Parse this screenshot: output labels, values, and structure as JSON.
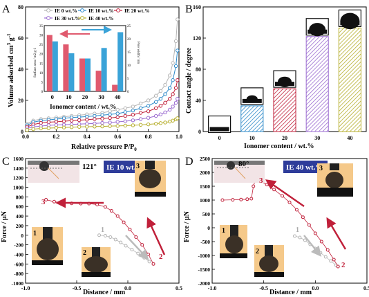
{
  "colors": {
    "gray": "#b4b4b4",
    "blue": "#2b88c8",
    "red": "#c0203a",
    "purple": "#9a6bd0",
    "olive": "#b6ae2c",
    "pink": "#e05a6e",
    "cyan": "#3aa3d8",
    "dark": "#111111"
  },
  "chart_data": [
    {
      "panel": "A",
      "type": "line",
      "xlabel": "Relative pressure P/P",
      "xlabel_sub": "0",
      "ylabel": "Volume adsorbed cm",
      "ylabel_unit_sup": "3",
      "ylabel_unit2": " g",
      "ylabel_unit2_sup": "-1",
      "xlim": [
        0.0,
        1.0
      ],
      "ylim": [
        0,
        80
      ],
      "x_ticks": [
        "0.0",
        "0.2",
        "0.4",
        "0.6",
        "0.8",
        "1.0"
      ],
      "y_ticks": [
        "0",
        "20",
        "40",
        "60",
        "80"
      ],
      "legend": [
        "IE  0 wt.%",
        "IE 10 wt.%",
        "IE 20 wt.%",
        "IE 30 wt.%",
        "IE 40 wt.%"
      ],
      "series": [
        {
          "name": "IE  0 wt.%",
          "color_key": "gray",
          "x": [
            0.01,
            0.05,
            0.1,
            0.15,
            0.2,
            0.25,
            0.3,
            0.35,
            0.4,
            0.45,
            0.5,
            0.55,
            0.6,
            0.65,
            0.7,
            0.75,
            0.8,
            0.85,
            0.88,
            0.91,
            0.94,
            0.96,
            0.98,
            0.99
          ],
          "y": [
            5,
            7,
            8,
            8.5,
            9,
            9.5,
            10,
            10.5,
            11,
            11.5,
            12,
            13,
            14,
            15,
            16,
            18,
            20,
            23,
            26,
            30,
            36,
            44,
            58,
            72
          ]
        },
        {
          "name": "IE 10 wt.%",
          "color_key": "blue",
          "x": [
            0.01,
            0.05,
            0.1,
            0.15,
            0.2,
            0.25,
            0.3,
            0.35,
            0.4,
            0.45,
            0.5,
            0.55,
            0.6,
            0.65,
            0.7,
            0.75,
            0.8,
            0.85,
            0.88,
            0.91,
            0.94,
            0.96,
            0.98,
            0.99
          ],
          "y": [
            4,
            6,
            7,
            7.5,
            8,
            8.5,
            9,
            9.3,
            9.6,
            10,
            10.5,
            11,
            11.5,
            12.5,
            13.5,
            15,
            16.5,
            19,
            21,
            24,
            28,
            33,
            42,
            52
          ]
        },
        {
          "name": "IE 20 wt.%",
          "color_key": "red",
          "x": [
            0.01,
            0.05,
            0.1,
            0.15,
            0.2,
            0.25,
            0.3,
            0.35,
            0.4,
            0.45,
            0.5,
            0.55,
            0.6,
            0.65,
            0.7,
            0.75,
            0.8,
            0.85,
            0.88,
            0.91,
            0.94,
            0.96,
            0.98,
            0.99
          ],
          "y": [
            3,
            4.5,
            5.5,
            6,
            6.3,
            6.6,
            7,
            7.3,
            7.6,
            8,
            8.3,
            8.7,
            9.2,
            10,
            10.8,
            12,
            13,
            15,
            16.5,
            18.5,
            21,
            24,
            28,
            33
          ]
        },
        {
          "name": "IE 30 wt.%",
          "color_key": "purple",
          "x": [
            0.01,
            0.05,
            0.1,
            0.15,
            0.2,
            0.25,
            0.3,
            0.35,
            0.4,
            0.45,
            0.5,
            0.55,
            0.6,
            0.65,
            0.7,
            0.75,
            0.8,
            0.85,
            0.88,
            0.91,
            0.94,
            0.96,
            0.98,
            0.99
          ],
          "y": [
            2,
            3,
            3.5,
            4,
            4.2,
            4.4,
            4.6,
            4.8,
            5,
            5.2,
            5.5,
            5.8,
            6.2,
            6.6,
            7.2,
            8,
            8.8,
            10,
            11,
            12.3,
            14,
            16,
            18.5,
            21
          ]
        },
        {
          "name": "IE 40 wt.%",
          "color_key": "olive",
          "x": [
            0.01,
            0.05,
            0.1,
            0.15,
            0.2,
            0.25,
            0.3,
            0.35,
            0.4,
            0.45,
            0.5,
            0.55,
            0.6,
            0.65,
            0.7,
            0.75,
            0.8,
            0.85,
            0.88,
            0.91,
            0.94,
            0.96,
            0.98,
            0.99
          ],
          "y": [
            1,
            1.5,
            2,
            2.2,
            2.4,
            2.6,
            2.8,
            3,
            3.1,
            3.2,
            3.3,
            3.5,
            3.6,
            3.8,
            4,
            4.3,
            4.6,
            5,
            5.4,
            5.8,
            6.4,
            7,
            7.8,
            8.5
          ]
        }
      ]
    },
    {
      "panel": "A-inset",
      "type": "bar",
      "xlabel": "Ionomer content / wt.%",
      "ylabel_left": "Surface area / m2 g-1",
      "ylabel_right": "Pore width / nm",
      "categories": [
        "0",
        "10",
        "20",
        "30",
        "40"
      ],
      "ylim_left": [
        0,
        35
      ],
      "ylim_right": [
        0,
        25
      ],
      "y_ticks_left": [
        "0",
        "5",
        "10",
        "15",
        "20",
        "25",
        "30",
        "35"
      ],
      "y_ticks_right": [
        "0",
        "5",
        "10",
        "15",
        "20",
        "25"
      ],
      "series": [
        {
          "axis": "left",
          "color_key": "pink",
          "values": [
            30,
            25,
            17.5,
            11,
            3.5
          ]
        },
        {
          "axis": "right",
          "color_key": "cyan",
          "values": [
            19,
            14.5,
            12.5,
            16.5,
            22.5
          ]
        }
      ]
    },
    {
      "panel": "B",
      "type": "bar",
      "xlabel": "Ionomer content / wt.%",
      "ylabel": "Contact angle / degree",
      "categories": [
        "0",
        "10",
        "20",
        "30",
        "40"
      ],
      "values": [
        0,
        33,
        55,
        122,
        133
      ],
      "ylim": [
        0,
        160
      ],
      "y_ticks": [
        "0",
        "40",
        "80",
        "120",
        "160"
      ],
      "series_colors": [
        "dark",
        "blue",
        "red",
        "purple",
        "olive"
      ]
    },
    {
      "panel": "C",
      "type": "scatter",
      "title_badge": "IE 10 wt.%",
      "angle_label": "121°",
      "xlabel": "Distance / mm",
      "ylabel": "Force / μN",
      "xlim": [
        -1.0,
        0.5
      ],
      "ylim": [
        -1000,
        1600
      ],
      "x_ticks": [
        "-1.0",
        "-0.5",
        "0.0",
        "0.5"
      ],
      "y_ticks": [
        "-1000",
        "-800",
        "-600",
        "-400",
        "-200",
        "0",
        "200",
        "400",
        "600",
        "800",
        "1000",
        "1200",
        "1400",
        "1600"
      ],
      "step_labels": [
        "1",
        "2",
        "3"
      ],
      "photo_labels": [
        "1",
        "2",
        "3"
      ],
      "series": [
        {
          "name": "approach",
          "color_key": "gray",
          "x": [
            -0.28,
            -0.22,
            -0.17,
            -0.12,
            -0.07,
            -0.02,
            0.04,
            0.1,
            0.16,
            0.21
          ],
          "y": [
            0,
            -10,
            -40,
            -90,
            -150,
            -220,
            -300,
            -380,
            -470,
            -550
          ]
        },
        {
          "name": "retract",
          "color_key": "red",
          "x": [
            0.25,
            0.2,
            0.14,
            0.08,
            0.02,
            -0.04,
            -0.1,
            -0.16,
            -0.22,
            -0.3,
            -0.38,
            -0.46,
            -0.55,
            -0.64,
            -0.72,
            -0.8
          ],
          "y": [
            -600,
            -400,
            -200,
            -40,
            120,
            270,
            400,
            510,
            590,
            640,
            660,
            660,
            665,
            675,
            700,
            740
          ]
        }
      ]
    },
    {
      "panel": "D",
      "type": "scatter",
      "title_badge": "IE 40 wt.%",
      "angle_label": "80°",
      "xlabel": "Distance / mm",
      "ylabel": "Force / μN",
      "xlim": [
        -1.0,
        0.5
      ],
      "ylim": [
        -2000,
        2500
      ],
      "x_ticks": [
        "-1.0",
        "-0.5",
        "0.0",
        "0.5"
      ],
      "y_ticks": [
        "-2000",
        "-1500",
        "-1000",
        "-500",
        "0",
        "500",
        "1000",
        "1500",
        "2000",
        "2500"
      ],
      "step_labels": [
        "1",
        "2",
        "3"
      ],
      "photo_labels": [
        "1",
        "2",
        "3"
      ],
      "series": [
        {
          "name": "approach",
          "color_key": "gray",
          "x": [
            -0.2,
            -0.15,
            -0.1,
            -0.05,
            0.0,
            0.05,
            0.1,
            0.15,
            0.2,
            0.22
          ],
          "y": [
            -300,
            -350,
            -450,
            -600,
            -750,
            -900,
            -1050,
            -1200,
            -1350,
            -1400
          ]
        },
        {
          "name": "retract",
          "color_key": "red",
          "x": [
            0.22,
            0.18,
            0.12,
            0.06,
            0.0,
            -0.06,
            -0.12,
            -0.18,
            -0.25,
            -0.32,
            -0.4,
            -0.47,
            -0.54,
            -0.58,
            -0.6,
            -0.62,
            -0.66,
            -0.72,
            -0.8,
            -0.9
          ],
          "y": [
            -1400,
            -1150,
            -800,
            -500,
            -200,
            100,
            380,
            650,
            920,
            1150,
            1380,
            1560,
            1700,
            1740,
            1500,
            1050,
            1030,
            1020,
            1010,
            1000
          ]
        }
      ]
    }
  ],
  "panels": {
    "a": "A",
    "b": "B",
    "c": "C",
    "d": "D"
  }
}
